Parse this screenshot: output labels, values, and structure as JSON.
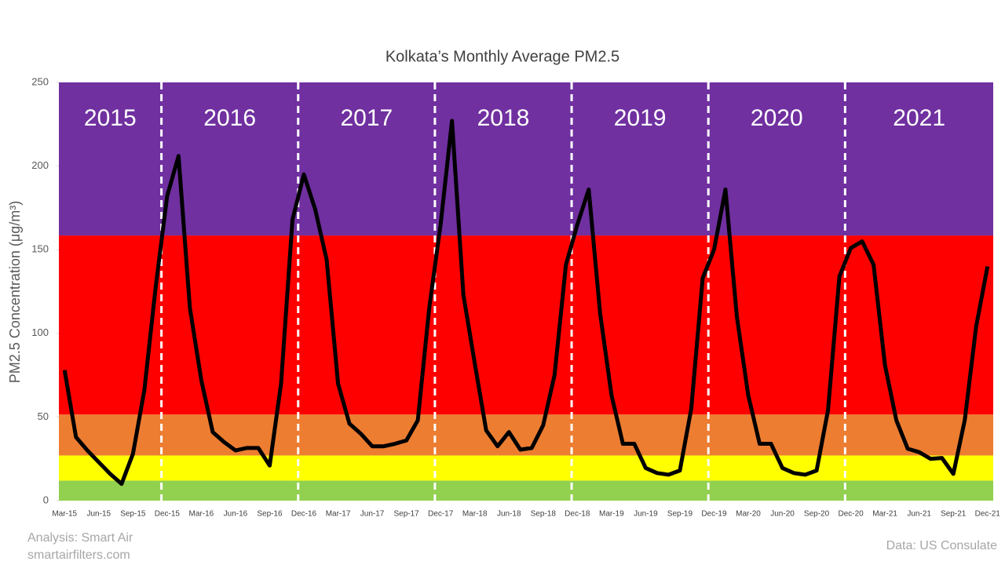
{
  "chart_data": {
    "type": "line",
    "title": "Kolkata’s Monthly Average PM2.5",
    "y_label": "PM2.5 Concentration (μg/m³)",
    "categories": [
      "Mar-15",
      null,
      null,
      "Jun-15",
      null,
      null,
      "Sep-15",
      null,
      null,
      "Dec-15",
      null,
      null,
      "Mar-16",
      null,
      null,
      "Jun-16",
      null,
      null,
      "Sep-16",
      null,
      null,
      "Dec-16",
      null,
      null,
      "Mar-17",
      null,
      null,
      "Jun-17",
      null,
      null,
      "Sep-17",
      null,
      null,
      "Dec-17",
      null,
      null,
      "Mar-18",
      null,
      null,
      "Jun-18",
      null,
      null,
      "Sep-18",
      null,
      null,
      "Dec-18",
      null,
      null,
      "Mar-19",
      null,
      null,
      "Jun-19",
      null,
      null,
      "Sep-19",
      null,
      null,
      "Dec-19",
      null,
      null,
      "Mar-20",
      null,
      null,
      "Jun-20",
      null,
      null,
      "Sep-20",
      null,
      null,
      "Dec-20",
      null,
      null,
      "Mar-21",
      null,
      null,
      "Jun-21",
      null,
      null,
      "Sep-21",
      null,
      null,
      "Dec-21"
    ],
    "series": [
      {
        "name": "PM2.5",
        "color": "#000000",
        "values": [
          78,
          38,
          30,
          23,
          16,
          10,
          28,
          66,
          128,
          182,
          206,
          115,
          72,
          41,
          35,
          30,
          31.5,
          31.5,
          21,
          70,
          168,
          195,
          174,
          144,
          70,
          46,
          40,
          32.5,
          32.5,
          34,
          36,
          48,
          115,
          165,
          227,
          123,
          82,
          42,
          32.5,
          41,
          30.5,
          31.5,
          45,
          75,
          141,
          165,
          186,
          112,
          63,
          34,
          34,
          19.5,
          16.5,
          15.5,
          18,
          55,
          133,
          150,
          186,
          110,
          63,
          34,
          34,
          19.5,
          16.5,
          15.5,
          18,
          54,
          134,
          151,
          155,
          141,
          81,
          48,
          31,
          29,
          25,
          25.5,
          16,
          48,
          104,
          140
        ]
      }
    ],
    "ylim": [
      0,
      250
    ],
    "yticks": [
      0,
      50,
      100,
      150,
      200,
      250
    ],
    "grid": false,
    "bands": [
      {
        "from": 0,
        "to": 12,
        "color": "#92d050"
      },
      {
        "from": 12,
        "to": 27,
        "color": "#ffff00"
      },
      {
        "from": 27,
        "to": 51.5,
        "color": "#ed7d31"
      },
      {
        "from": 51.5,
        "to": 158.5,
        "color": "#ff0000"
      },
      {
        "from": 158.5,
        "to": 250,
        "color": "#7030a0"
      }
    ],
    "year_breaks": [
      8.5,
      20.5,
      32.5,
      44.5,
      56.5,
      68.5
    ],
    "year_labels": [
      "2015",
      "2016",
      "2017",
      "2018",
      "2019",
      "2020",
      "2021"
    ],
    "notes": [
      "Analysis: Smart Air",
      "smartairfilters.com",
      "Data: US Consulate"
    ]
  }
}
